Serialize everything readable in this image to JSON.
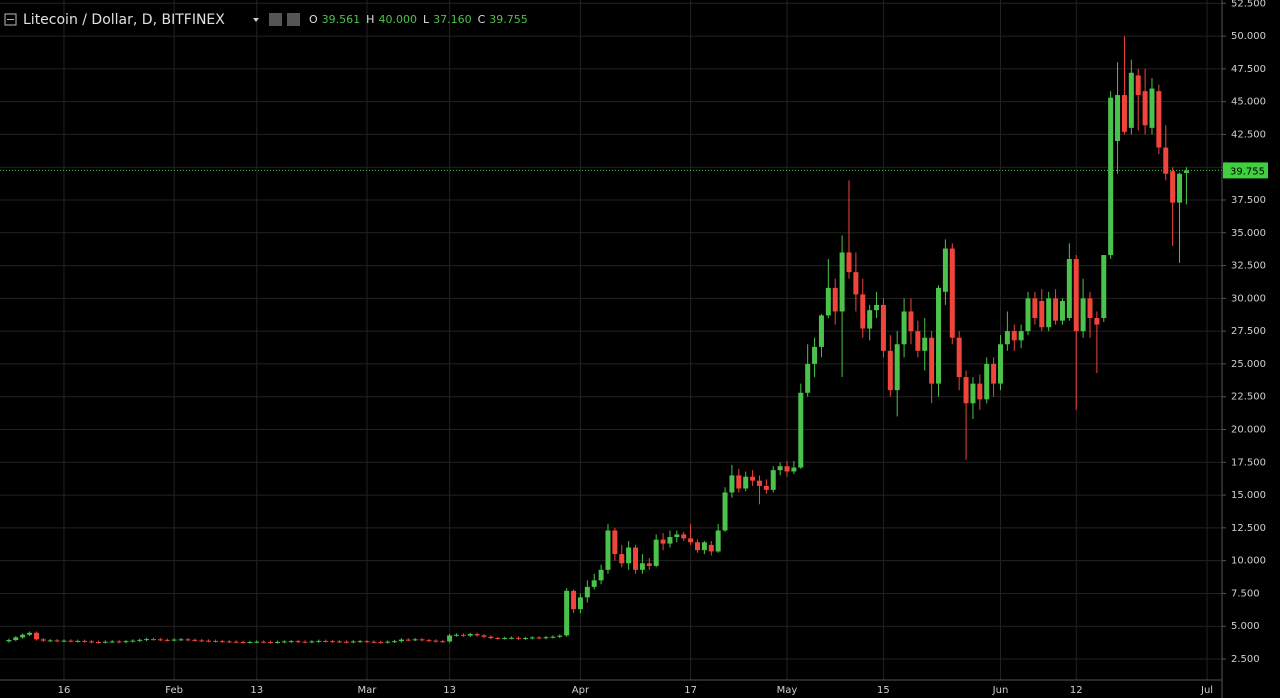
{
  "chart_data": {
    "type": "candlestick",
    "title": "Litecoin / Dollar, D, BITFINEX",
    "ohlc_legend": [
      {
        "label": "O",
        "value": "39.561"
      },
      {
        "label": "H",
        "value": "40.000"
      },
      {
        "label": "L",
        "value": "37.160"
      },
      {
        "label": "C",
        "value": "39.755"
      }
    ],
    "categories": [
      null,
      null,
      null,
      null,
      null,
      null,
      null,
      null,
      "16",
      null,
      null,
      null,
      null,
      null,
      null,
      null,
      null,
      null,
      null,
      null,
      null,
      null,
      null,
      null,
      "Feb",
      null,
      null,
      null,
      null,
      null,
      null,
      null,
      null,
      null,
      null,
      null,
      "13",
      null,
      null,
      null,
      null,
      null,
      null,
      null,
      null,
      null,
      null,
      null,
      null,
      null,
      null,
      null,
      "Mar",
      null,
      null,
      null,
      null,
      null,
      null,
      null,
      null,
      null,
      null,
      null,
      "13",
      null,
      null,
      null,
      null,
      null,
      null,
      null,
      null,
      null,
      null,
      null,
      null,
      null,
      null,
      null,
      null,
      null,
      null,
      "Apr",
      null,
      null,
      null,
      null,
      null,
      null,
      null,
      null,
      null,
      null,
      null,
      null,
      null,
      null,
      null,
      "17",
      null,
      null,
      null,
      null,
      null,
      null,
      null,
      null,
      null,
      null,
      null,
      null,
      null,
      "May",
      null,
      null,
      null,
      null,
      null,
      null,
      null,
      null,
      null,
      null,
      null,
      null,
      null,
      "15",
      null,
      null,
      null,
      null,
      null,
      null,
      null,
      null,
      null,
      null,
      null,
      null,
      null,
      null,
      null,
      null,
      "Jun",
      null,
      null,
      null,
      null,
      null,
      null,
      null,
      null,
      null,
      null,
      "12",
      null,
      null,
      null,
      null,
      null,
      null,
      null,
      null,
      null,
      null,
      null,
      null,
      null,
      null,
      null,
      null,
      null,
      null,
      "Jul",
      null,
      null
    ],
    "open": [
      3.85,
      3.95,
      4.15,
      4.35,
      4.5,
      4.0,
      3.9,
      3.92,
      3.88,
      3.9,
      3.86,
      3.88,
      3.84,
      3.8,
      3.78,
      3.82,
      3.84,
      3.8,
      3.86,
      3.9,
      3.96,
      4.02,
      4.0,
      3.96,
      3.94,
      3.98,
      4.0,
      3.96,
      3.92,
      3.9,
      3.88,
      3.86,
      3.84,
      3.82,
      3.8,
      3.78,
      3.8,
      3.82,
      3.8,
      3.78,
      3.8,
      3.84,
      3.86,
      3.82,
      3.8,
      3.84,
      3.88,
      3.86,
      3.84,
      3.82,
      3.8,
      3.84,
      3.86,
      3.82,
      3.8,
      3.78,
      3.82,
      3.86,
      3.98,
      3.96,
      4.0,
      3.94,
      3.9,
      3.86,
      3.84,
      4.3,
      4.35,
      4.28,
      4.4,
      4.3,
      4.2,
      4.1,
      4.08,
      4.1,
      4.12,
      4.06,
      4.1,
      4.14,
      4.1,
      4.16,
      4.2,
      4.3,
      7.7,
      6.3,
      7.2,
      8.0,
      8.5,
      9.3,
      12.3,
      10.5,
      9.8,
      11.0,
      9.3,
      9.8,
      9.6,
      11.6,
      11.3,
      11.8,
      12.0,
      11.7,
      11.4,
      10.8,
      11.2,
      10.7,
      12.3,
      15.2,
      16.5,
      15.5,
      16.4,
      16.1,
      15.7,
      15.4,
      16.9,
      17.2,
      16.8,
      17.1,
      22.8,
      25.0,
      26.3,
      28.7,
      30.8,
      29.0,
      33.5,
      32.0,
      30.3,
      27.7,
      29.1,
      29.5,
      26.0,
      23.0,
      26.5,
      29.0,
      27.5,
      26.0,
      27.0,
      23.5,
      30.5,
      33.8,
      27.0,
      24.0,
      22.0,
      23.5,
      22.3,
      25.0,
      23.5,
      26.5,
      27.5,
      26.8,
      27.5,
      30.0,
      29.8,
      27.8,
      30.0,
      28.3,
      28.5,
      33.0,
      27.5,
      30.0,
      28.5,
      28.5,
      33.3,
      42.0,
      45.5,
      43.0,
      47.0,
      45.8,
      43.0,
      45.8,
      41.5,
      39.7,
      37.3,
      39.561,
      null,
      null,
      null,
      null,
      null
    ],
    "high": [
      4.05,
      4.25,
      4.45,
      4.6,
      4.6,
      4.1,
      4.02,
      4.02,
      4.0,
      4.0,
      3.98,
      3.98,
      3.94,
      3.9,
      3.92,
      3.94,
      3.94,
      3.96,
      4.0,
      4.06,
      4.12,
      4.12,
      4.1,
      4.06,
      4.08,
      4.1,
      4.1,
      4.06,
      4.02,
      4.0,
      3.98,
      3.96,
      3.94,
      3.92,
      3.9,
      3.9,
      3.92,
      3.92,
      3.9,
      3.9,
      3.94,
      3.96,
      3.96,
      3.92,
      3.94,
      3.98,
      3.98,
      3.96,
      3.94,
      3.92,
      3.94,
      3.96,
      3.96,
      3.92,
      3.9,
      3.92,
      3.96,
      4.08,
      4.08,
      4.1,
      4.1,
      4.04,
      4.0,
      3.96,
      4.4,
      4.45,
      4.45,
      4.5,
      4.5,
      4.4,
      4.3,
      4.2,
      4.2,
      4.22,
      4.22,
      4.2,
      4.24,
      4.24,
      4.26,
      4.3,
      4.38,
      7.9,
      7.8,
      7.5,
      8.5,
      9.0,
      9.7,
      12.8,
      12.5,
      11.2,
      11.5,
      11.2,
      10.5,
      10.2,
      12.0,
      12.1,
      12.3,
      12.3,
      12.2,
      12.8,
      11.6,
      11.5,
      11.5,
      12.8,
      15.6,
      17.3,
      17.0,
      16.8,
      16.9,
      16.5,
      16.2,
      17.2,
      17.5,
      17.6,
      17.6,
      23.5,
      26.5,
      27.0,
      28.8,
      33.0,
      31.5,
      34.8,
      39.0,
      33.5,
      31.5,
      29.5,
      30.5,
      30.0,
      27.2,
      27.5,
      30.0,
      30.0,
      28.3,
      28.5,
      27.5,
      31.0,
      34.5,
      34.2,
      27.5,
      24.5,
      24.0,
      24.2,
      25.5,
      25.5,
      27.2,
      29.0,
      28.0,
      28.0,
      30.5,
      30.5,
      30.7,
      30.5,
      30.7,
      30.0,
      34.2,
      33.3,
      31.5,
      30.5,
      29.0,
      33.3,
      45.8,
      48.0,
      50.0,
      48.2,
      47.5,
      47.5,
      46.8,
      46.3,
      43.2,
      40.0,
      39.6,
      40.0,
      null,
      null,
      null,
      null,
      null
    ],
    "low": [
      3.75,
      3.85,
      4.05,
      4.25,
      3.9,
      3.8,
      3.8,
      3.78,
      3.78,
      3.76,
      3.76,
      3.74,
      3.7,
      3.68,
      3.68,
      3.72,
      3.7,
      3.7,
      3.76,
      3.8,
      3.86,
      3.9,
      3.86,
      3.84,
      3.84,
      3.88,
      3.86,
      3.82,
      3.8,
      3.78,
      3.76,
      3.74,
      3.72,
      3.7,
      3.68,
      3.68,
      3.7,
      3.7,
      3.68,
      3.68,
      3.7,
      3.74,
      3.72,
      3.7,
      3.7,
      3.74,
      3.76,
      3.74,
      3.72,
      3.7,
      3.7,
      3.74,
      3.72,
      3.7,
      3.68,
      3.68,
      3.72,
      3.76,
      3.86,
      3.86,
      3.84,
      3.8,
      3.76,
      3.74,
      3.74,
      4.2,
      4.18,
      4.18,
      4.2,
      4.1,
      4.0,
      3.98,
      3.98,
      4.0,
      3.96,
      3.96,
      4.0,
      4.0,
      4.0,
      4.06,
      4.1,
      4.2,
      6.0,
      6.0,
      6.8,
      7.8,
      8.2,
      9.0,
      10.0,
      9.5,
      9.3,
      9.0,
      9.0,
      9.3,
      9.5,
      10.8,
      11.0,
      11.4,
      11.5,
      11.2,
      10.6,
      10.5,
      10.4,
      10.6,
      12.2,
      14.8,
      15.2,
      15.3,
      15.7,
      14.3,
      15.1,
      15.2,
      16.5,
      16.4,
      16.6,
      17.0,
      22.5,
      24.0,
      25.5,
      28.5,
      28.0,
      24.0,
      31.5,
      29.0,
      27.0,
      26.8,
      28.5,
      25.5,
      22.5,
      21.0,
      25.5,
      26.5,
      25.5,
      24.5,
      22.0,
      22.5,
      29.5,
      26.5,
      23.0,
      17.7,
      20.8,
      21.5,
      22.0,
      22.5,
      23.0,
      26.0,
      26.0,
      26.2,
      27.2,
      28.0,
      27.5,
      27.5,
      28.0,
      28.0,
      28.3,
      21.5,
      27.0,
      27.0,
      24.3,
      28.2,
      33.0,
      39.5,
      42.5,
      42.5,
      42.8,
      42.5,
      42.5,
      41.0,
      39.0,
      34.0,
      32.7,
      37.16,
      null,
      null,
      null,
      null,
      null
    ],
    "close": [
      3.95,
      4.15,
      4.35,
      4.5,
      4.0,
      3.9,
      3.92,
      3.88,
      3.9,
      3.86,
      3.88,
      3.84,
      3.8,
      3.78,
      3.82,
      3.84,
      3.8,
      3.86,
      3.9,
      3.96,
      4.02,
      4.0,
      3.96,
      3.94,
      3.98,
      4.0,
      3.96,
      3.92,
      3.9,
      3.88,
      3.86,
      3.84,
      3.82,
      3.8,
      3.78,
      3.8,
      3.82,
      3.8,
      3.78,
      3.8,
      3.84,
      3.86,
      3.82,
      3.8,
      3.84,
      3.88,
      3.86,
      3.84,
      3.82,
      3.8,
      3.84,
      3.86,
      3.82,
      3.8,
      3.78,
      3.82,
      3.86,
      3.98,
      3.96,
      4.0,
      3.94,
      3.9,
      3.86,
      3.84,
      4.3,
      4.35,
      4.28,
      4.4,
      4.3,
      4.2,
      4.1,
      4.08,
      4.1,
      4.12,
      4.06,
      4.1,
      4.14,
      4.1,
      4.16,
      4.2,
      4.28,
      7.7,
      6.3,
      7.2,
      8.0,
      8.5,
      9.3,
      12.3,
      10.5,
      9.8,
      11.0,
      9.3,
      9.8,
      9.6,
      11.6,
      11.3,
      11.8,
      12.0,
      11.7,
      11.4,
      10.8,
      11.4,
      10.7,
      12.3,
      15.2,
      16.5,
      15.5,
      16.4,
      16.1,
      15.7,
      15.4,
      16.9,
      17.2,
      16.8,
      17.1,
      22.8,
      25.0,
      26.3,
      28.7,
      30.8,
      29.0,
      33.5,
      32.0,
      30.3,
      27.7,
      29.1,
      29.5,
      26.0,
      23.0,
      26.5,
      29.0,
      27.5,
      26.0,
      27.0,
      23.5,
      30.8,
      33.8,
      27.0,
      24.0,
      22.0,
      23.5,
      22.3,
      25.0,
      23.5,
      26.5,
      27.5,
      26.8,
      27.5,
      30.0,
      28.5,
      27.8,
      30.0,
      28.3,
      29.8,
      33.0,
      27.5,
      30.0,
      28.5,
      28.0,
      33.3,
      45.3,
      45.5,
      42.7,
      47.2,
      45.5,
      43.2,
      46.0,
      41.5,
      39.5,
      37.3,
      39.5,
      39.755,
      null,
      null,
      null,
      null,
      null
    ],
    "up_color": "#4bc24b",
    "down_color": "#f0453c",
    "ylim": [
      0.9,
      52.75
    ],
    "yticks": [
      {
        "value": 2.5,
        "label": "2.500"
      },
      {
        "value": 5,
        "label": "5.000"
      },
      {
        "value": 7.5,
        "label": "7.500"
      },
      {
        "value": 10,
        "label": "10.000"
      },
      {
        "value": 12.5,
        "label": "12.500"
      },
      {
        "value": 15,
        "label": "15.000"
      },
      {
        "value": 17.5,
        "label": "17.500"
      },
      {
        "value": 20,
        "label": "20.000"
      },
      {
        "value": 22.5,
        "label": "22.500"
      },
      {
        "value": 25,
        "label": "25.000"
      },
      {
        "value": 27.5,
        "label": "27.500"
      },
      {
        "value": 30,
        "label": "30.000"
      },
      {
        "value": 32.5,
        "label": "32.500"
      },
      {
        "value": 35,
        "label": "35.000"
      },
      {
        "value": 37.5,
        "label": "37.500"
      },
      {
        "value": 40,
        "label": "40.000"
      },
      {
        "value": 42.5,
        "label": "42.500"
      },
      {
        "value": 45,
        "label": "45.000"
      },
      {
        "value": 47.5,
        "label": "47.500"
      },
      {
        "value": 50,
        "label": "50.000"
      },
      {
        "value": 52.5,
        "label": "52.500"
      }
    ],
    "grid": true,
    "last_price": 39.755,
    "last_price_color": "#3fcf3f"
  }
}
